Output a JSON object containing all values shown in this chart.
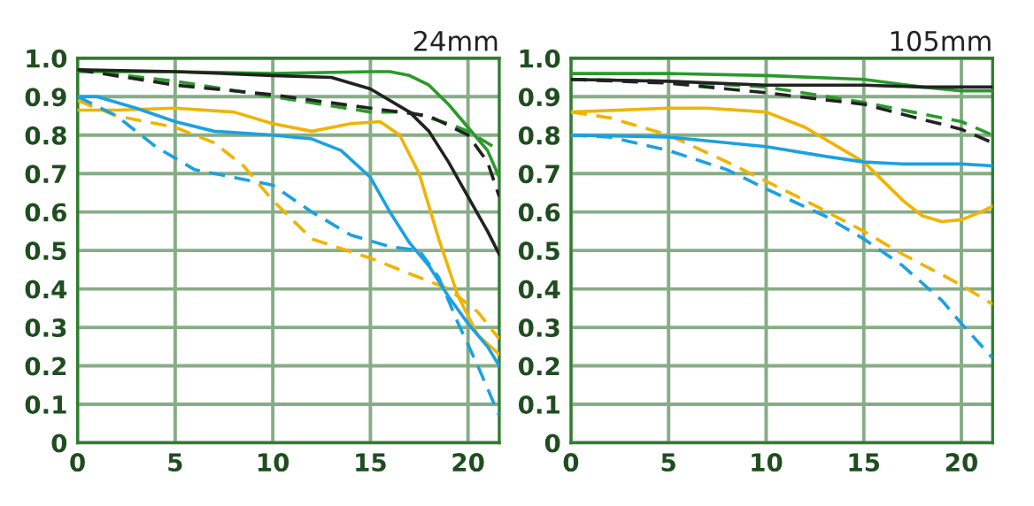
{
  "chart_data": [
    {
      "type": "line",
      "title": "24mm",
      "xlim": [
        0,
        21.6
      ],
      "ylim": [
        0,
        1.0
      ],
      "xticks": [
        0,
        5,
        10,
        15,
        20
      ],
      "yticks": [
        0,
        0.1,
        0.2,
        0.3,
        0.4,
        0.5,
        0.6,
        0.7,
        0.8,
        0.9,
        {
          "value": 1.0,
          "label": "1.0"
        }
      ],
      "grid": true,
      "marker": "none",
      "series": [
        {
          "color": "#2a9a2a",
          "line_style": "solid",
          "x": [
            0,
            5,
            10,
            15,
            16,
            17,
            18,
            19,
            20,
            21,
            21.6
          ],
          "values": [
            0.965,
            0.965,
            0.96,
            0.965,
            0.965,
            0.955,
            0.93,
            0.88,
            0.82,
            0.76,
            0.69
          ]
        },
        {
          "color": "#2a9a2a",
          "line_style": "dashed",
          "x": [
            0,
            5,
            10,
            15,
            17,
            19,
            20,
            21.3
          ],
          "values": [
            0.97,
            0.94,
            0.9,
            0.86,
            0.86,
            0.83,
            0.81,
            0.77
          ]
        },
        {
          "color": "#222222",
          "line_style": "solid",
          "x": [
            0,
            5,
            10,
            13,
            15,
            17,
            18,
            19,
            20,
            21,
            21.6
          ],
          "values": [
            0.97,
            0.965,
            0.955,
            0.95,
            0.92,
            0.86,
            0.81,
            0.73,
            0.64,
            0.55,
            0.49
          ]
        },
        {
          "color": "#222222",
          "line_style": "dashed",
          "x": [
            0,
            5,
            10,
            15,
            18,
            20,
            21,
            21.6
          ],
          "values": [
            0.97,
            0.93,
            0.905,
            0.87,
            0.85,
            0.8,
            0.73,
            0.64
          ]
        },
        {
          "color": "#f0b400",
          "line_style": "solid",
          "x": [
            0,
            2,
            5,
            8,
            10,
            12,
            14,
            15.5,
            16.5,
            17.5,
            18.5,
            19.5,
            20.5,
            21.6
          ],
          "values": [
            0.865,
            0.865,
            0.87,
            0.86,
            0.83,
            0.81,
            0.83,
            0.835,
            0.8,
            0.7,
            0.53,
            0.38,
            0.28,
            0.23
          ]
        },
        {
          "color": "#f0b400",
          "line_style": "dashed",
          "x": [
            0,
            2,
            5,
            7,
            8.5,
            10,
            12,
            15,
            17,
            19,
            20.5,
            21.6
          ],
          "values": [
            0.89,
            0.85,
            0.82,
            0.78,
            0.72,
            0.63,
            0.53,
            0.48,
            0.44,
            0.4,
            0.34,
            0.27
          ]
        },
        {
          "color": "#1ba1e2",
          "line_style": "solid",
          "x": [
            0,
            1,
            3,
            5,
            7,
            10,
            12,
            13.5,
            15,
            16,
            17,
            18,
            19,
            20,
            21,
            21.6
          ],
          "values": [
            0.9,
            0.9,
            0.87,
            0.835,
            0.81,
            0.8,
            0.79,
            0.76,
            0.69,
            0.6,
            0.52,
            0.46,
            0.38,
            0.31,
            0.25,
            0.2
          ]
        },
        {
          "color": "#1ba1e2",
          "line_style": "dashed",
          "x": [
            0,
            2,
            4,
            6,
            8,
            10,
            12,
            14,
            16,
            17.5,
            18.5,
            19.5,
            20.5,
            21.6
          ],
          "values": [
            0.9,
            0.85,
            0.77,
            0.71,
            0.69,
            0.67,
            0.6,
            0.54,
            0.51,
            0.5,
            0.43,
            0.31,
            0.2,
            0.07
          ]
        }
      ]
    },
    {
      "type": "line",
      "title": "105mm",
      "xlim": [
        0,
        21.6
      ],
      "ylim": [
        0,
        1.0
      ],
      "xticks": [
        0,
        5,
        10,
        15,
        20
      ],
      "yticks": [
        0,
        0.1,
        0.2,
        0.3,
        0.4,
        0.5,
        0.6,
        0.7,
        0.8,
        0.9,
        {
          "value": 1.0,
          "label": "1.0"
        }
      ],
      "grid": true,
      "marker": "none",
      "series": [
        {
          "color": "#2a9a2a",
          "line_style": "solid",
          "x": [
            0,
            5,
            10,
            15,
            18,
            20,
            21.6
          ],
          "values": [
            0.96,
            0.96,
            0.955,
            0.945,
            0.925,
            0.915,
            0.915
          ]
        },
        {
          "color": "#2a9a2a",
          "line_style": "dashed",
          "x": [
            0,
            5,
            10,
            15,
            20,
            21.6
          ],
          "values": [
            0.945,
            0.94,
            0.925,
            0.885,
            0.835,
            0.8
          ]
        },
        {
          "color": "#222222",
          "line_style": "solid",
          "x": [
            0,
            5,
            10,
            15,
            18,
            21.6
          ],
          "values": [
            0.945,
            0.94,
            0.93,
            0.93,
            0.925,
            0.925
          ]
        },
        {
          "color": "#222222",
          "line_style": "dashed",
          "x": [
            0,
            5,
            10,
            15,
            20,
            21.6
          ],
          "values": [
            0.945,
            0.935,
            0.91,
            0.88,
            0.815,
            0.78
          ]
        },
        {
          "color": "#f0b400",
          "line_style": "solid",
          "x": [
            0,
            5,
            7,
            10,
            12,
            14,
            15,
            16,
            17,
            18,
            19,
            20,
            21,
            21.6
          ],
          "values": [
            0.86,
            0.87,
            0.87,
            0.86,
            0.82,
            0.76,
            0.73,
            0.68,
            0.63,
            0.59,
            0.575,
            0.58,
            0.6,
            0.615
          ]
        },
        {
          "color": "#f0b400",
          "line_style": "dashed",
          "x": [
            0,
            2,
            5,
            8,
            10,
            12,
            15,
            17,
            20,
            21.6
          ],
          "values": [
            0.86,
            0.845,
            0.8,
            0.73,
            0.68,
            0.63,
            0.55,
            0.49,
            0.41,
            0.36
          ]
        },
        {
          "color": "#1ba1e2",
          "line_style": "solid",
          "x": [
            0,
            5,
            7,
            10,
            13,
            15,
            17,
            20,
            21.6
          ],
          "values": [
            0.8,
            0.795,
            0.785,
            0.77,
            0.745,
            0.73,
            0.725,
            0.725,
            0.72
          ]
        },
        {
          "color": "#1ba1e2",
          "line_style": "dashed",
          "x": [
            0,
            2,
            5,
            8,
            10,
            13,
            15,
            17,
            19,
            20,
            21.6
          ],
          "values": [
            0.8,
            0.795,
            0.76,
            0.71,
            0.66,
            0.59,
            0.53,
            0.46,
            0.37,
            0.31,
            0.22
          ]
        }
      ]
    }
  ]
}
